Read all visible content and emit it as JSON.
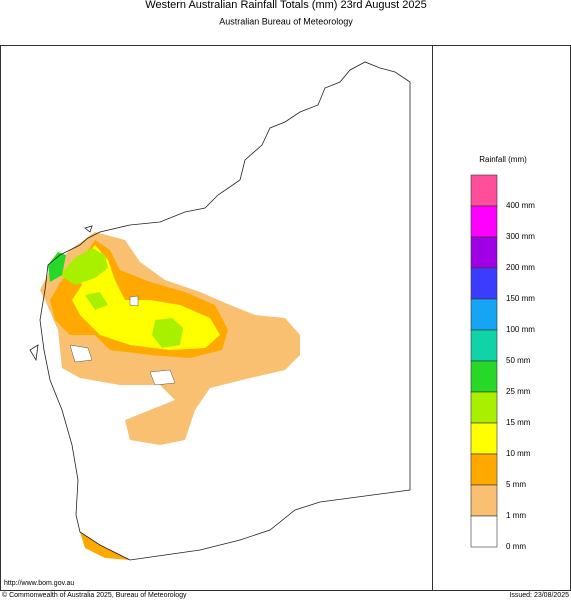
{
  "header": {
    "title": "Western Australian Rainfall Totals (mm) 23rd August 2025",
    "subtitle": "Australian Bureau of Meteorology"
  },
  "legend": {
    "title": "Rainfall (mm)",
    "items": [
      {
        "label": "400 mm",
        "color": "#ff4f9b"
      },
      {
        "label": "300 mm",
        "color": "#ff00ff"
      },
      {
        "label": "200 mm",
        "color": "#a000e6"
      },
      {
        "label": "150 mm",
        "color": "#3c3cff"
      },
      {
        "label": "100 mm",
        "color": "#16a4f4"
      },
      {
        "label": "50 mm",
        "color": "#10d4a8"
      },
      {
        "label": "25 mm",
        "color": "#28d828"
      },
      {
        "label": "15 mm",
        "color": "#a8f000"
      },
      {
        "label": "10 mm",
        "color": "#ffff00"
      },
      {
        "label": "5 mm",
        "color": "#ffa800"
      },
      {
        "label": "1 mm",
        "color": "#f8c070"
      },
      {
        "label": "0 mm",
        "color": "#ffffff"
      }
    ]
  },
  "footer": {
    "url": "http://www.bom.gov.au",
    "copyright": "© Commonwealth of Australia 2025, Bureau of Meteorology",
    "issued": "Issued: 23/08/2025"
  }
}
